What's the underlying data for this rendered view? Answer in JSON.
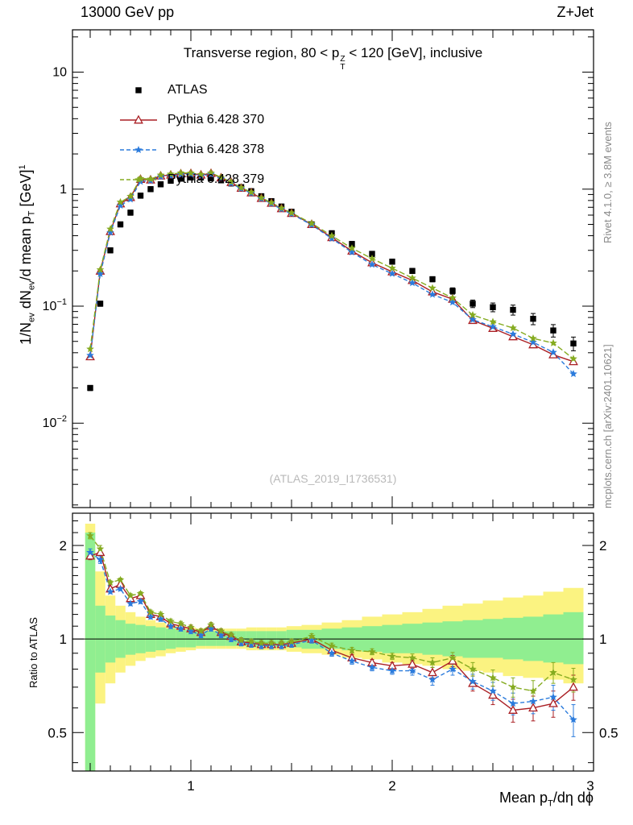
{
  "header": {
    "left": "13000 GeV pp",
    "right": "Z+Jet"
  },
  "title": {
    "p1": "Transverse region, 80 < p",
    "sup": "Z",
    "sub": "T",
    "p2": " < 120 [GeV], inclusive"
  },
  "watermark": "(ATLAS_2019_I1736531)",
  "sidebar": {
    "top": "Rivet 4.1.0, ≥ 3.8M events",
    "bottom": "mcplots.cern.ch [arXiv:2401.10621]"
  },
  "axes": {
    "ylabel": {
      "p1": "1/N",
      "s1": "ev",
      "p2": " dN",
      "s2": "ev",
      "p3": "/d mean p",
      "s3": "T",
      "p4": " [GeV]",
      "sup": "1"
    },
    "xlabel": {
      "p1": "Mean p",
      "s1": "T",
      "p2": "/dη dϕ"
    },
    "ratio_label": "Ratio to ATLAS"
  },
  "legend": [
    {
      "label": "ATLAS",
      "marker": "square",
      "color": "#000000",
      "line": "none"
    },
    {
      "label": "Pythia 6.428 370",
      "marker": "triangle",
      "color": "#aa1f24",
      "line": "solid"
    },
    {
      "label": "Pythia 6.428 378",
      "marker": "star",
      "color": "#2b7bdc",
      "line": "dashed"
    },
    {
      "label": "Pythia 6.428 379",
      "marker": "star",
      "color": "#85ab20",
      "line": "dashed"
    }
  ],
  "colors": {
    "band_outer": "#fbf381",
    "band_inner": "#90ee90",
    "ref_line": "#000000"
  },
  "chart_data": {
    "type": "line",
    "title": "Transverse region, 80 < pT(Z) < 120 [GeV], inclusive",
    "x_axis": {
      "label": "Mean pT/dη dϕ",
      "scale": "linear",
      "min": 0.412,
      "max": 3.0,
      "major_ticks": [
        1,
        2,
        3
      ]
    },
    "y_axis_main": {
      "label": "1/Nev dNev/d mean pT [GeV]^-1",
      "scale": "log",
      "min": 0.0019,
      "max": 23,
      "major_ticks": [
        0.01,
        0.1,
        1,
        10
      ]
    },
    "y_axis_ratio": {
      "label": "Ratio to ATLAS",
      "scale": "log",
      "min": 0.376,
      "max": 2.54,
      "major_ticks": [
        0.5,
        1,
        2
      ]
    },
    "legend_position": "top-left-inside",
    "grid": false,
    "x": [
      0.5,
      0.55,
      0.6,
      0.65,
      0.7,
      0.75,
      0.8,
      0.85,
      0.9,
      0.95,
      1.0,
      1.05,
      1.1,
      1.15,
      1.2,
      1.25,
      1.3,
      1.35,
      1.4,
      1.45,
      1.5,
      1.6,
      1.7,
      1.8,
      1.9,
      2.0,
      2.1,
      2.2,
      2.3,
      2.4,
      2.5,
      2.6,
      2.7,
      2.8,
      2.9
    ],
    "series": [
      {
        "name": "ATLAS",
        "role": "reference-data",
        "marker": "square",
        "color": "#000000",
        "values": [
          0.02,
          0.105,
          0.3,
          0.5,
          0.63,
          0.88,
          1.0,
          1.1,
          1.18,
          1.23,
          1.26,
          1.26,
          1.24,
          1.19,
          1.12,
          1.04,
          0.96,
          0.87,
          0.79,
          0.71,
          0.64,
          0.5,
          0.42,
          0.34,
          0.28,
          0.24,
          0.2,
          0.17,
          0.135,
          0.105,
          0.098,
          0.093,
          0.078,
          0.062,
          0.048
        ]
      },
      {
        "name": "Pythia 6.428 370",
        "marker": "triangle",
        "color": "#aa1f24",
        "line": "solid",
        "ratio_to_atlas": [
          1.85,
          1.9,
          1.45,
          1.5,
          1.35,
          1.38,
          1.2,
          1.18,
          1.12,
          1.1,
          1.08,
          1.05,
          1.1,
          1.05,
          1.02,
          0.98,
          0.97,
          0.96,
          0.96,
          0.96,
          0.97,
          1.0,
          0.92,
          0.87,
          0.84,
          0.82,
          0.83,
          0.78,
          0.85,
          0.72,
          0.66,
          0.59,
          0.6,
          0.62,
          0.7
        ]
      },
      {
        "name": "Pythia 6.428 378",
        "marker": "star",
        "color": "#2b7bdc",
        "line": "dashed",
        "ratio_to_atlas": [
          1.9,
          1.8,
          1.42,
          1.45,
          1.3,
          1.32,
          1.18,
          1.16,
          1.1,
          1.08,
          1.06,
          1.03,
          1.08,
          1.03,
          1.0,
          0.97,
          0.96,
          0.95,
          0.95,
          0.95,
          0.96,
          0.99,
          0.9,
          0.85,
          0.81,
          0.79,
          0.79,
          0.74,
          0.8,
          0.73,
          0.68,
          0.62,
          0.63,
          0.65,
          0.55
        ]
      },
      {
        "name": "Pythia 6.428 379",
        "marker": "star",
        "color": "#85ab20",
        "line": "dashed",
        "ratio_to_atlas": [
          2.15,
          1.95,
          1.52,
          1.55,
          1.38,
          1.4,
          1.22,
          1.2,
          1.14,
          1.12,
          1.09,
          1.06,
          1.11,
          1.06,
          1.03,
          0.99,
          0.98,
          0.97,
          0.97,
          0.97,
          0.98,
          1.02,
          0.95,
          0.92,
          0.91,
          0.88,
          0.87,
          0.84,
          0.87,
          0.8,
          0.75,
          0.7,
          0.68,
          0.78,
          0.74
        ]
      }
    ],
    "ratio_bands": {
      "outer_lo": [
        0.3,
        0.62,
        0.72,
        0.78,
        0.82,
        0.85,
        0.87,
        0.88,
        0.9,
        0.91,
        0.92,
        0.93,
        0.93,
        0.93,
        0.93,
        0.93,
        0.92,
        0.92,
        0.92,
        0.92,
        0.91,
        0.9,
        0.89,
        0.87,
        0.86,
        0.84,
        0.83,
        0.82,
        0.8,
        0.79,
        0.78,
        0.76,
        0.75,
        0.74,
        0.72
      ],
      "outer_hi": [
        2.35,
        1.65,
        1.38,
        1.28,
        1.22,
        1.18,
        1.15,
        1.13,
        1.11,
        1.1,
        1.09,
        1.08,
        1.08,
        1.08,
        1.08,
        1.08,
        1.09,
        1.09,
        1.09,
        1.09,
        1.1,
        1.11,
        1.13,
        1.15,
        1.18,
        1.2,
        1.22,
        1.25,
        1.28,
        1.3,
        1.33,
        1.36,
        1.38,
        1.42,
        1.46
      ],
      "inner_lo": [
        0.36,
        0.78,
        0.84,
        0.87,
        0.89,
        0.9,
        0.91,
        0.92,
        0.93,
        0.94,
        0.94,
        0.95,
        0.95,
        0.95,
        0.95,
        0.95,
        0.94,
        0.94,
        0.94,
        0.94,
        0.94,
        0.93,
        0.93,
        0.92,
        0.91,
        0.9,
        0.9,
        0.89,
        0.88,
        0.87,
        0.87,
        0.86,
        0.85,
        0.84,
        0.83
      ],
      "inner_hi": [
        2.2,
        1.28,
        1.19,
        1.15,
        1.12,
        1.11,
        1.1,
        1.09,
        1.08,
        1.07,
        1.06,
        1.06,
        1.06,
        1.06,
        1.06,
        1.06,
        1.06,
        1.06,
        1.06,
        1.06,
        1.07,
        1.07,
        1.08,
        1.09,
        1.1,
        1.11,
        1.12,
        1.13,
        1.14,
        1.15,
        1.16,
        1.17,
        1.18,
        1.2,
        1.22
      ]
    }
  }
}
